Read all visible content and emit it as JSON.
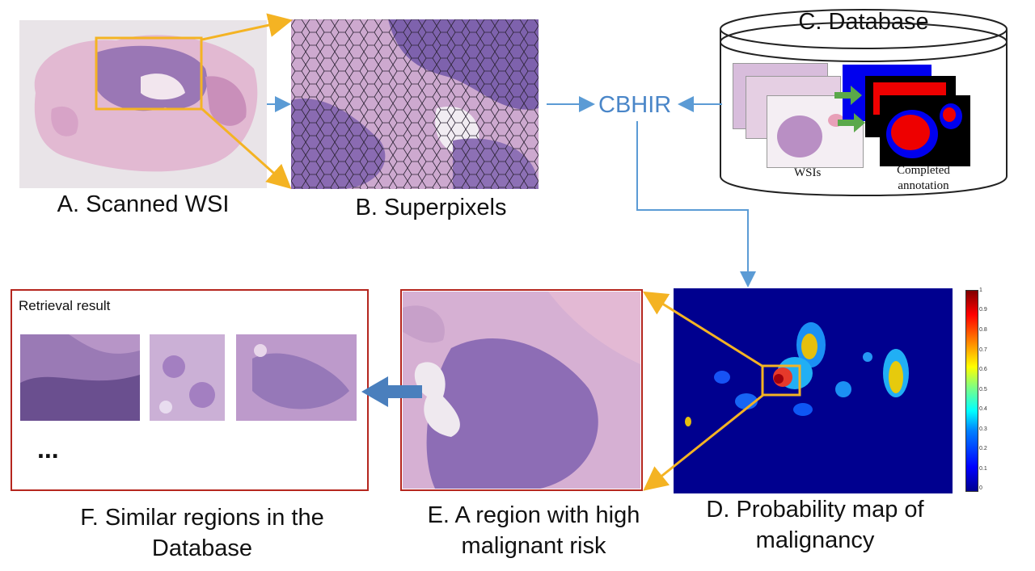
{
  "captions": {
    "a": "A. Scanned WSI",
    "b": "B. Superpixels",
    "c": "C. Database",
    "d_line1": "D. Probability map of",
    "d_line2": "malignancy",
    "e_line1": "E. A region with high",
    "e_line2": "malignant risk",
    "f_line1": "F. Similar regions in the",
    "f_line2": "Database"
  },
  "cbhir": "CBHIR",
  "database": {
    "wsis_label": "WSIs",
    "annotation_line1": "Completed",
    "annotation_line2": "annotation"
  },
  "retrieval": {
    "title": "Retrieval result",
    "ellipsis": "..."
  },
  "colorbar_ticks": [
    "1",
    "0.9",
    "0.8",
    "0.7",
    "0.6",
    "0.5",
    "0.4",
    "0.3",
    "0.2",
    "0.1",
    "0"
  ],
  "colors": {
    "arrow_yellow": "#f4b323",
    "arrow_blue": "#5b9bd5",
    "cbhir_text": "#4a86c8",
    "frame_red": "#b5261e",
    "map_background": "#00008f",
    "tissue_pink": "#d9a7c9",
    "tissue_purple": "#8e6ab0"
  },
  "icons": [
    "yellow-arrow",
    "blue-arrow",
    "database-cylinder",
    "colorbar",
    "large-left-arrow"
  ]
}
